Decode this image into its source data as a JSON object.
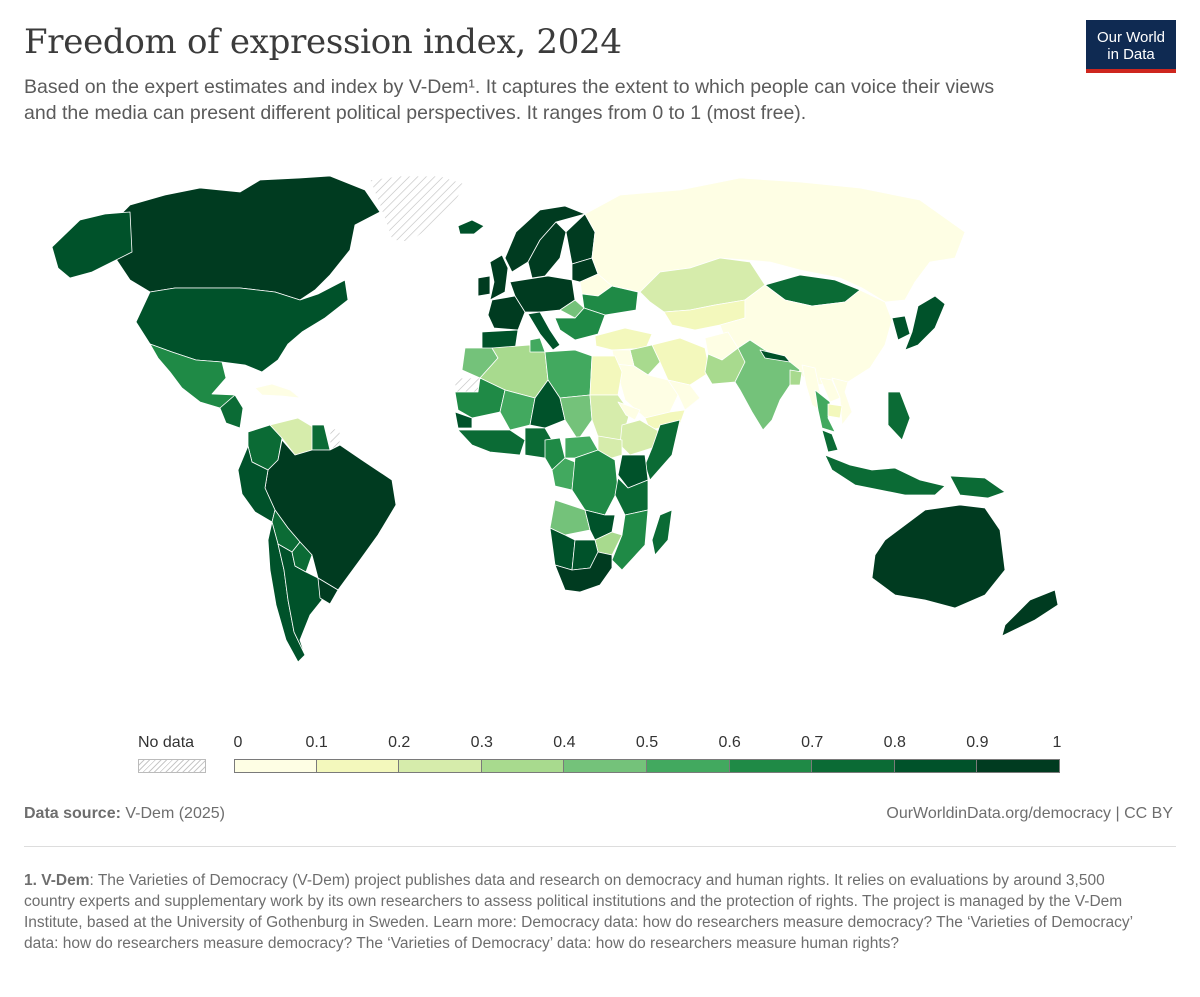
{
  "header": {
    "title": "Freedom of expression index, 2024",
    "subtitle": "Based on the expert estimates and index by V-Dem¹. It captures the extent to which people can voice their views and the media can present different political perspectives. It ranges from 0 to 1 (most free)."
  },
  "logo": {
    "line1": "Our World",
    "line2": "in Data",
    "bg": "#0f2a52",
    "accent": "#ce261e"
  },
  "legend": {
    "no_data_label": "No data",
    "ticks": [
      "0",
      "0.1",
      "0.2",
      "0.3",
      "0.4",
      "0.5",
      "0.6",
      "0.7",
      "0.8",
      "0.9",
      "1"
    ],
    "colors": [
      "#fefee4",
      "#f3f8bc",
      "#d6ecab",
      "#a8da8e",
      "#74c27a",
      "#42a95f",
      "#1f8a46",
      "#0b6b35",
      "#00522a",
      "#003b20"
    ]
  },
  "chart_data": {
    "type": "choropleth",
    "value_range": [
      0,
      1
    ],
    "bins": [
      0,
      0.1,
      0.2,
      0.3,
      0.4,
      0.5,
      0.6,
      0.7,
      0.8,
      0.9,
      1
    ],
    "no_data_regions": [
      "Greenland",
      "Western Sahara",
      "French Guiana"
    ],
    "regions": [
      {
        "region": "Canada",
        "bin": 9
      },
      {
        "region": "Alaska",
        "bin": 8
      },
      {
        "region": "United States",
        "bin": 8
      },
      {
        "region": "Mexico",
        "bin": 6
      },
      {
        "region": "Central America",
        "bin": 7
      },
      {
        "region": "Cuba",
        "bin": 0
      },
      {
        "region": "Colombia",
        "bin": 7
      },
      {
        "region": "Venezuela",
        "bin": 2
      },
      {
        "region": "Guyana",
        "bin": 7
      },
      {
        "region": "Brazil",
        "bin": 9
      },
      {
        "region": "Peru",
        "bin": 8
      },
      {
        "region": "Bolivia",
        "bin": 7
      },
      {
        "region": "Chile",
        "bin": 8
      },
      {
        "region": "Argentina",
        "bin": 8
      },
      {
        "region": "Uruguay",
        "bin": 9
      },
      {
        "region": "Paraguay",
        "bin": 7
      },
      {
        "region": "Iceland",
        "bin": 8
      },
      {
        "region": "Norway",
        "bin": 9
      },
      {
        "region": "Sweden",
        "bin": 9
      },
      {
        "region": "Finland",
        "bin": 9
      },
      {
        "region": "United Kingdom",
        "bin": 9
      },
      {
        "region": "Ireland",
        "bin": 9
      },
      {
        "region": "France",
        "bin": 9
      },
      {
        "region": "Iberia",
        "bin": 8
      },
      {
        "region": "Central Europe",
        "bin": 9
      },
      {
        "region": "Italy",
        "bin": 8
      },
      {
        "region": "Baltics",
        "bin": 9
      },
      {
        "region": "Belarus",
        "bin": 0
      },
      {
        "region": "Ukraine",
        "bin": 6
      },
      {
        "region": "Balkans",
        "bin": 6
      },
      {
        "region": "Hungary",
        "bin": 4
      },
      {
        "region": "Turkey",
        "bin": 1
      },
      {
        "region": "Russia",
        "bin": 0
      },
      {
        "region": "Kazakhstan",
        "bin": 2
      },
      {
        "region": "Central Asia",
        "bin": 1
      },
      {
        "region": "Mongolia",
        "bin": 7
      },
      {
        "region": "China",
        "bin": 0
      },
      {
        "region": "Korea",
        "bin": 8
      },
      {
        "region": "Japan",
        "bin": 8
      },
      {
        "region": "Iran",
        "bin": 1
      },
      {
        "region": "Iraq",
        "bin": 3
      },
      {
        "region": "Syria",
        "bin": 0
      },
      {
        "region": "Saudi Arabia",
        "bin": 0
      },
      {
        "region": "Yemen",
        "bin": 1
      },
      {
        "region": "Gulf states",
        "bin": 0
      },
      {
        "region": "Afghanistan",
        "bin": 0
      },
      {
        "region": "Pakistan",
        "bin": 3
      },
      {
        "region": "India",
        "bin": 4
      },
      {
        "region": "Nepal",
        "bin": 8
      },
      {
        "region": "Bangladesh",
        "bin": 3
      },
      {
        "region": "Myanmar",
        "bin": 0
      },
      {
        "region": "Thailand",
        "bin": 5
      },
      {
        "region": "Laos",
        "bin": 0
      },
      {
        "region": "Vietnam",
        "bin": 0
      },
      {
        "region": "Cambodia",
        "bin": 1
      },
      {
        "region": "Malaysia",
        "bin": 7
      },
      {
        "region": "Philippines",
        "bin": 7
      },
      {
        "region": "Indonesia",
        "bin": 7
      },
      {
        "region": "Papua New Guinea",
        "bin": 7
      },
      {
        "region": "Australia",
        "bin": 9
      },
      {
        "region": "New Zealand",
        "bin": 9
      },
      {
        "region": "Morocco",
        "bin": 4
      },
      {
        "region": "Algeria",
        "bin": 3
      },
      {
        "region": "Tunisia",
        "bin": 5
      },
      {
        "region": "Libya",
        "bin": 5
      },
      {
        "region": "Egypt",
        "bin": 1
      },
      {
        "region": "Mauritania",
        "bin": 6
      },
      {
        "region": "Mali",
        "bin": 5
      },
      {
        "region": "Niger",
        "bin": 8
      },
      {
        "region": "Chad",
        "bin": 4
      },
      {
        "region": "Sudan",
        "bin": 2
      },
      {
        "region": "Eritrea",
        "bin": 0
      },
      {
        "region": "Ethiopia",
        "bin": 2
      },
      {
        "region": "Somalia",
        "bin": 7
      },
      {
        "region": "Senegal",
        "bin": 8
      },
      {
        "region": "West Africa coast",
        "bin": 7
      },
      {
        "region": "Nigeria",
        "bin": 7
      },
      {
        "region": "Cameroon",
        "bin": 6
      },
      {
        "region": "Central African Republic",
        "bin": 5
      },
      {
        "region": "South Sudan",
        "bin": 2
      },
      {
        "region": "Kenya",
        "bin": 8
      },
      {
        "region": "Gabon/Congo",
        "bin": 5
      },
      {
        "region": "DR Congo",
        "bin": 6
      },
      {
        "region": "Tanzania",
        "bin": 7
      },
      {
        "region": "Angola",
        "bin": 4
      },
      {
        "region": "Zambia",
        "bin": 8
      },
      {
        "region": "Mozambique",
        "bin": 6
      },
      {
        "region": "Zimbabwe",
        "bin": 3
      },
      {
        "region": "Namibia",
        "bin": 8
      },
      {
        "region": "Botswana",
        "bin": 8
      },
      {
        "region": "South Africa",
        "bin": 9
      },
      {
        "region": "Madagascar",
        "bin": 7
      }
    ]
  },
  "source": {
    "label": "Data source:",
    "value": "V-Dem (2025)",
    "url_text": "OurWorldinData.org/democracy | CC BY"
  },
  "footnote": {
    "label": "1. V-Dem",
    "text": ": The Varieties of Democracy (V-Dem) project publishes data and research on democracy and human rights. It relies on evaluations by around 3,500 country experts and supplementary work by its own researchers to assess political institutions and the protection of rights. The project is managed by the V-Dem Institute, based at the University of Gothenburg in Sweden. Learn more: Democracy data: how do researchers measure democracy? The ‘Varieties of Democracy’ data: how do researchers measure democracy? The ‘Varieties of Democracy’ data: how do researchers measure human rights?"
  }
}
